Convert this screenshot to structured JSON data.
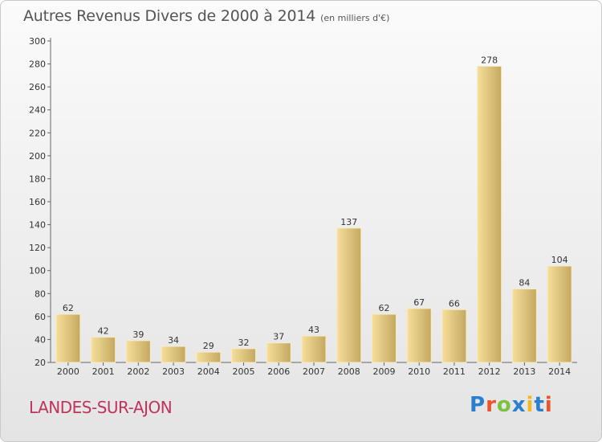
{
  "chart_data": {
    "type": "bar",
    "title": "Autres Revenus Divers de 2000 à 2014",
    "subtitle": "(en milliers d'€)",
    "categories": [
      "2000",
      "2001",
      "2002",
      "2003",
      "2004",
      "2005",
      "2006",
      "2007",
      "2008",
      "2009",
      "2010",
      "2011",
      "2012",
      "2013",
      "2014"
    ],
    "values": [
      62,
      42,
      39,
      34,
      29,
      32,
      37,
      43,
      137,
      62,
      67,
      66,
      278,
      84,
      104
    ],
    "ylim": [
      20,
      300
    ],
    "yticks": [
      20,
      40,
      60,
      80,
      100,
      120,
      140,
      160,
      180,
      200,
      220,
      240,
      260,
      280,
      300
    ],
    "grid": false,
    "bar_color_light": "#f6df9b",
    "bar_color_dark": "#c4a860"
  },
  "commune": "LANDES-SUR-AJON",
  "logo": {
    "letters": [
      "P",
      "r",
      "o",
      "x",
      "i",
      "t",
      "i"
    ],
    "colors": [
      "#2a7fd0",
      "#e9542b",
      "#7cc242",
      "#2a7fd0",
      "#f1b81f",
      "#2a7fd0",
      "#e9542b"
    ]
  }
}
